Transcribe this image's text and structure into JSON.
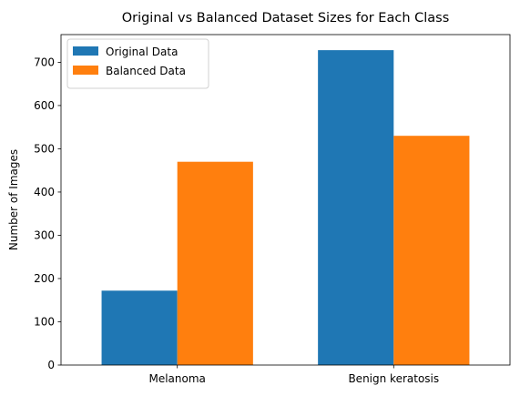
{
  "chart_data": {
    "type": "bar",
    "title": "Original vs Balanced Dataset Sizes for Each Class",
    "xlabel": "",
    "ylabel": "Number of Images",
    "categories": [
      "Melanoma",
      "Benign keratosis"
    ],
    "series": [
      {
        "name": "Original Data",
        "values": [
          172,
          728
        ],
        "color": "#1f77b4"
      },
      {
        "name": "Balanced Data",
        "values": [
          470,
          530
        ],
        "color": "#ff7f0e"
      }
    ],
    "ylim": [
      0,
      764
    ],
    "yticks": [
      0,
      100,
      200,
      300,
      400,
      500,
      600,
      700
    ],
    "grid": false,
    "legend": "top-left"
  }
}
